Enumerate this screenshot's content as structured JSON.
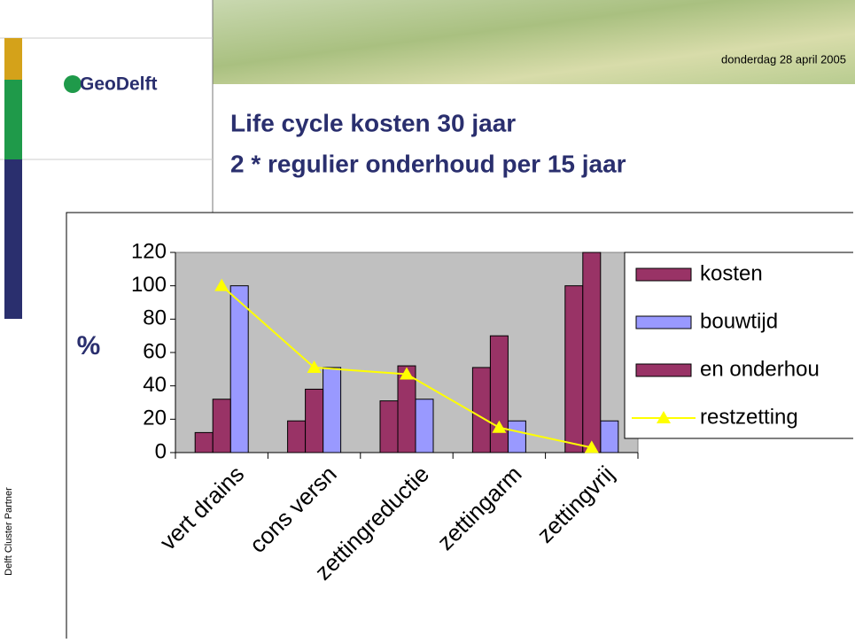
{
  "slide": {
    "logo": "GeoDelft",
    "date": "donderdag 28 april 2005",
    "title_lines": [
      "Life cycle kosten 30 jaar",
      "2 * regulier onderhoud per 15 jaar"
    ],
    "side_text": "Delft Cluster Partner"
  },
  "chart_data": {
    "type": "bar",
    "y_label": "%",
    "categories": [
      "vert drains",
      "cons versn",
      "zettingreductie",
      "zettingarm",
      "zettingvrij"
    ],
    "series": [
      {
        "name": "kosten",
        "color": "#993366",
        "values": [
          12,
          19,
          31,
          51,
          100
        ]
      },
      {
        "name": "bouwtijd",
        "color": "#9999ff",
        "values": [
          100,
          51,
          32,
          19,
          19
        ]
      },
      {
        "name": "en onderhou",
        "color": "#993366",
        "values": [
          32,
          38,
          52,
          70,
          120
        ]
      },
      {
        "name": "restzetting",
        "type": "line",
        "color": "#ffff00",
        "values": [
          100,
          51,
          47,
          15,
          3
        ]
      }
    ],
    "ylim": [
      0,
      120
    ],
    "yticks": [
      0,
      20,
      40,
      60,
      80,
      100,
      120
    ],
    "plot_background": "#c0c0c0"
  }
}
